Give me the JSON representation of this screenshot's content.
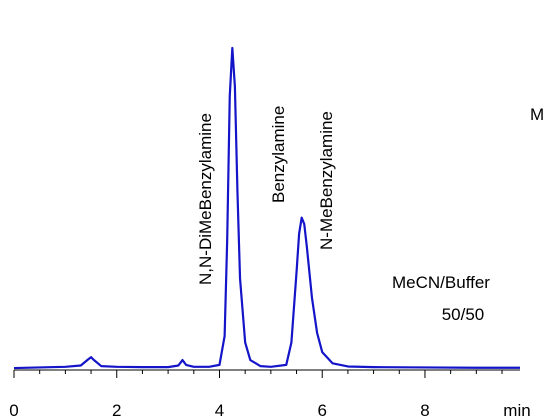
{
  "chart_data": {
    "type": "line",
    "x_label": "min",
    "annotations": [
      "N,N-DiMeBenzylamine",
      "Benzylamine",
      "N-MeBenzylamine",
      "MeCN/Buffer",
      "50/50",
      "M"
    ],
    "x": [
      0,
      0.5,
      1.0,
      1.3,
      1.45,
      1.5,
      1.55,
      1.7,
      2.0,
      2.5,
      3.0,
      3.2,
      3.28,
      3.35,
      3.5,
      3.8,
      4.0,
      4.1,
      4.15,
      4.2,
      4.25,
      4.3,
      4.35,
      4.4,
      4.5,
      4.6,
      4.8,
      5.0,
      5.3,
      5.4,
      5.5,
      5.55,
      5.6,
      5.65,
      5.7,
      5.8,
      5.9,
      6.0,
      6.2,
      6.5,
      7.0,
      8.0,
      9.0,
      9.85
    ],
    "series": [
      {
        "color": "#1414c8",
        "values": [
          0,
          0.2,
          0.4,
          0.8,
          2.8,
          3.4,
          2.6,
          0.6,
          0.4,
          0.3,
          0.3,
          0.8,
          2.5,
          1,
          0.4,
          0.4,
          1,
          10,
          40,
          85,
          100,
          88,
          55,
          28,
          8,
          2.5,
          0.6,
          0.4,
          1,
          8,
          30,
          42,
          47,
          45,
          38,
          22,
          11,
          5,
          1.5,
          0.5,
          0.3,
          0.2,
          0.1,
          0.1
        ]
      }
    ],
    "xlim": [
      0,
      9.85
    ],
    "ylim": [
      -0.6,
      115
    ],
    "xticks": [
      0,
      2,
      4,
      6,
      8
    ],
    "xticks_minor": [
      0.5,
      1,
      1.5,
      2.5,
      3,
      3.5,
      4.5,
      5,
      5.5,
      6.5,
      7,
      7.5,
      8.5,
      9,
      9.5
    ]
  }
}
